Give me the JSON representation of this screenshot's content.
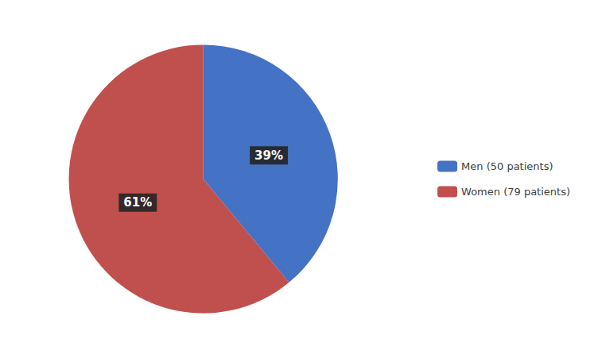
{
  "chart_data": {
    "type": "pie",
    "categories": [
      "Men (50 patients)",
      "Women (79 patients)"
    ],
    "values": [
      39,
      61
    ],
    "value_labels": [
      "39%",
      "61%"
    ],
    "colors": [
      "#4472C4",
      "#C0504D"
    ],
    "data_labels": true,
    "legend": "right"
  }
}
